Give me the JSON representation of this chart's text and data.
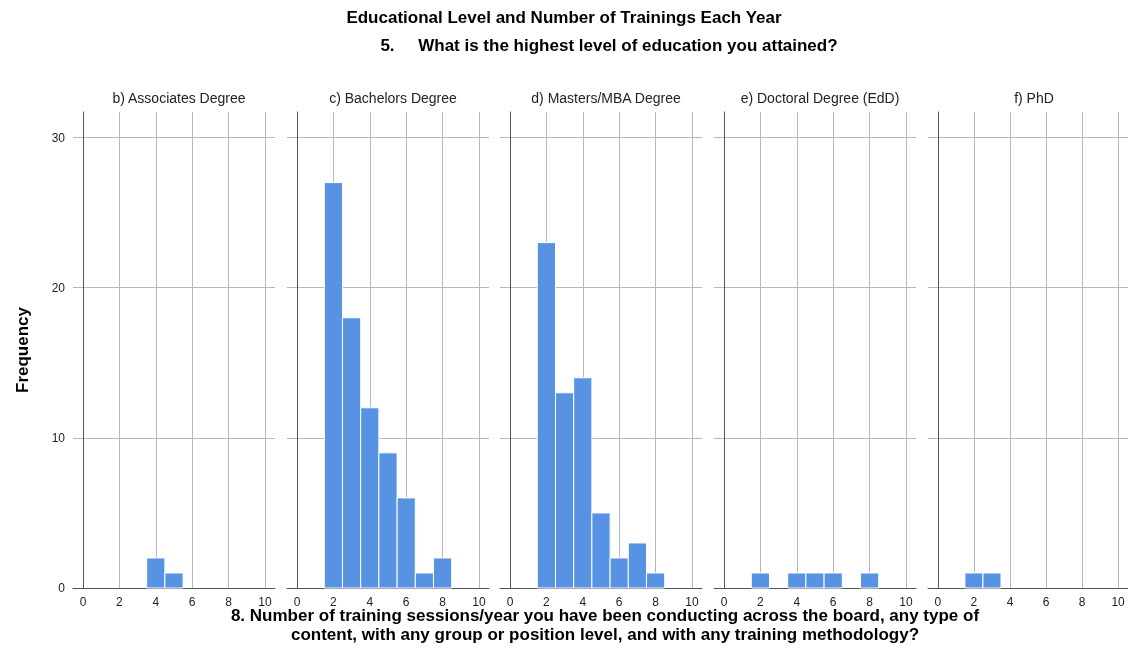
{
  "chart_data": [
    {
      "type": "histogram",
      "title": "b) Associates Degree",
      "annotations": [
        "Educational Level and Number of Trainings Each Year",
        "5.     What is the highest level of education you attained?"
      ],
      "ylabel": "Frequency",
      "bins": [
        1.5,
        2.5,
        3.5,
        4.5,
        5.5,
        6.5,
        7.5,
        8.5
      ],
      "values": [
        0,
        0,
        2,
        1,
        0,
        0,
        0
      ],
      "color": "#5892e3",
      "xlim": [
        -0.55,
        10.55
      ],
      "xticks": [
        0,
        2,
        4,
        6,
        8,
        10
      ],
      "ylim": [
        0,
        31.7
      ],
      "yticks": [
        0,
        10,
        20,
        30
      ],
      "grid": true
    },
    {
      "type": "histogram",
      "title": "c) Bachelors Degree",
      "bins": [
        1.5,
        2.5,
        3.5,
        4.5,
        5.5,
        6.5,
        7.5,
        8.5
      ],
      "values": [
        27,
        18,
        12,
        9,
        6,
        1,
        2
      ],
      "color": "#5892e3",
      "xlim": [
        -0.55,
        10.55
      ],
      "xticks": [
        0,
        2,
        4,
        6,
        8,
        10
      ],
      "ylim": [
        0,
        31.7
      ],
      "yticks": [
        0,
        10,
        20,
        30
      ],
      "grid": true,
      "tick_labels": "x"
    },
    {
      "type": "histogram",
      "title": "d) Masters/MBA Degree",
      "xlabel": "8. Number of training sessions/year you have been conducting across the board, any type of content, with any group or position level, and with any training methodology?",
      "bins": [
        1.5,
        2.5,
        3.5,
        4.5,
        5.5,
        6.5,
        7.5,
        8.5
      ],
      "values": [
        23,
        13,
        14,
        5,
        2,
        3,
        1
      ],
      "color": "#5892e3",
      "xlim": [
        -0.55,
        10.55
      ],
      "xticks": [
        0,
        2,
        4,
        6,
        8,
        10
      ],
      "ylim": [
        0,
        31.7
      ],
      "yticks": [
        0,
        10,
        20,
        30
      ],
      "grid": true,
      "tick_labels": "x"
    },
    {
      "type": "histogram",
      "title": "e) Doctoral Degree (EdD)",
      "bins": [
        1.5,
        2.5,
        3.5,
        4.5,
        5.5,
        6.5,
        7.5,
        8.5
      ],
      "values": [
        1,
        0,
        1,
        1,
        1,
        0,
        1
      ],
      "color": "#5892e3",
      "xlim": [
        -0.55,
        10.55
      ],
      "xticks": [
        0,
        2,
        4,
        6,
        8,
        10
      ],
      "ylim": [
        0,
        31.7
      ],
      "yticks": [
        0,
        10,
        20,
        30
      ],
      "grid": true,
      "tick_labels": "x"
    },
    {
      "type": "histogram",
      "title": "f) PhD",
      "bins": [
        1.5,
        2.5,
        3.5,
        4.5,
        5.5,
        6.5,
        7.5,
        8.5
      ],
      "values": [
        1,
        1,
        0,
        0,
        0,
        0,
        0
      ],
      "color": "#5892e3",
      "xlim": [
        -0.55,
        10.55
      ],
      "xticks": [
        0,
        2,
        4,
        6,
        8,
        10
      ],
      "ylim": [
        0,
        31.7
      ],
      "yticks": [
        0,
        10,
        20,
        30
      ],
      "grid": true,
      "tick_labels": "x"
    }
  ]
}
